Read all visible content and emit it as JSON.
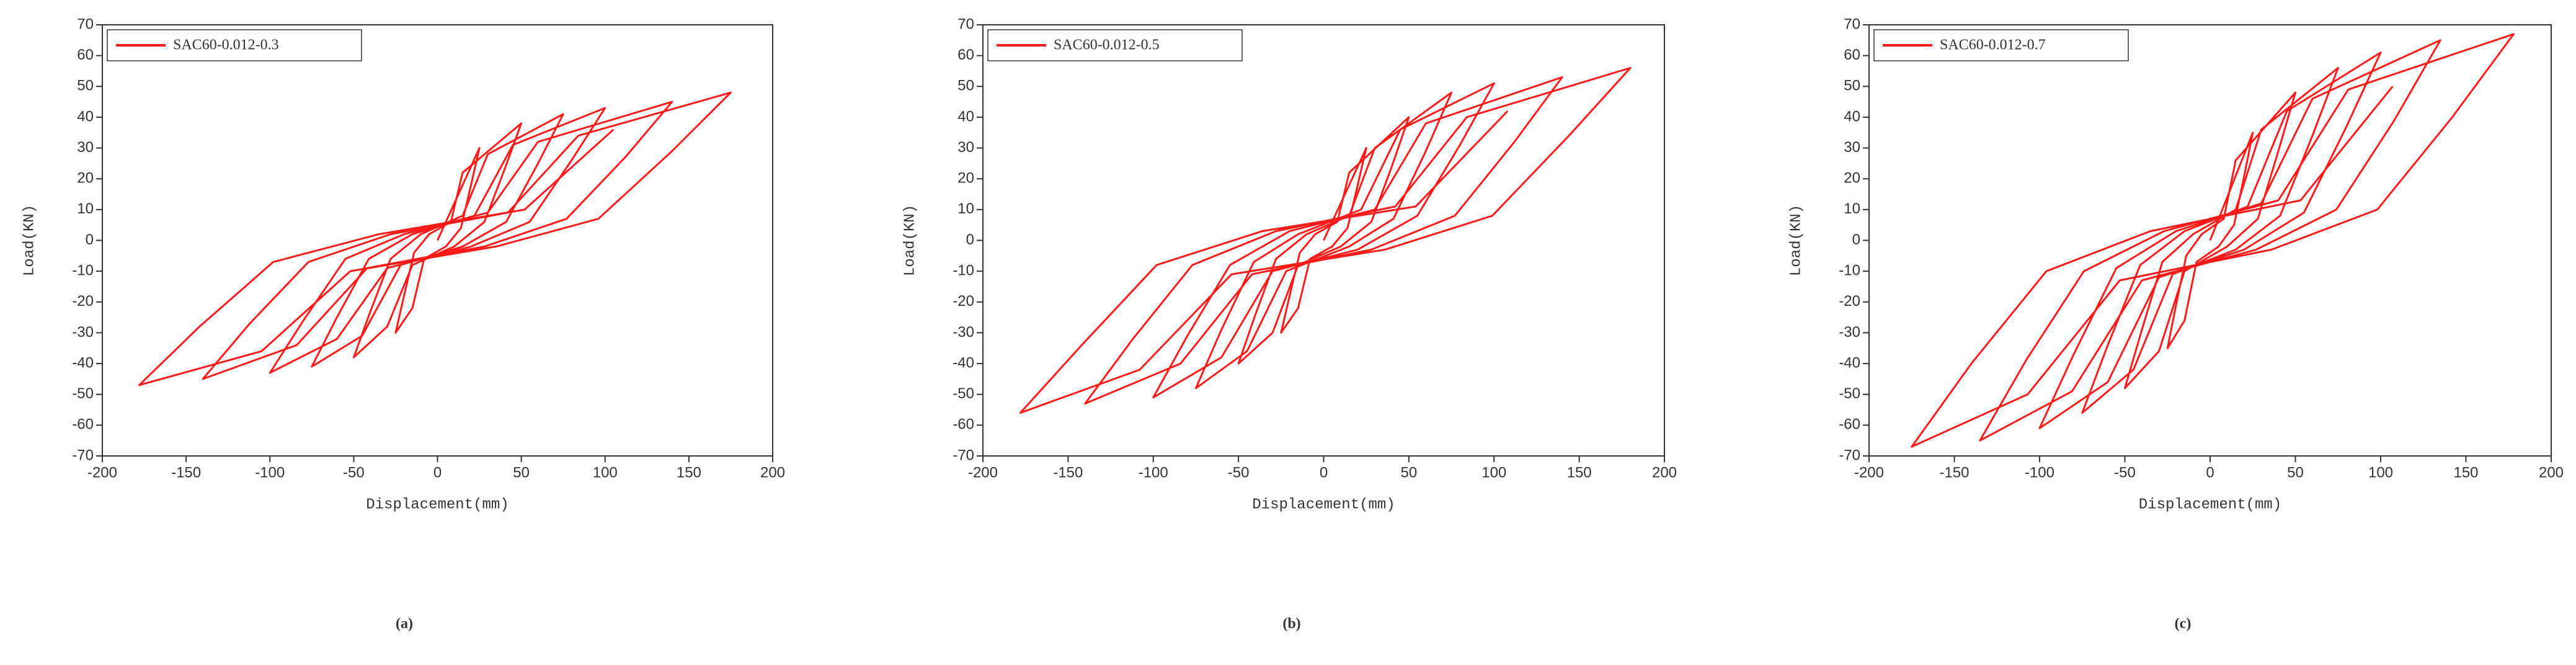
{
  "chart_data": [
    {
      "type": "line",
      "caption": "(a)",
      "xlabel": "Displacement(mm)",
      "ylabel": "Load(KN)",
      "legend": "upper left",
      "xlim": [
        -200,
        200
      ],
      "xticks": [
        -200,
        -150,
        -100,
        -50,
        0,
        50,
        100,
        150,
        200
      ],
      "ylim": [
        -70,
        70
      ],
      "yticks": [
        -70,
        -60,
        -50,
        -40,
        -30,
        -20,
        -10,
        0,
        10,
        20,
        30,
        40,
        50,
        60,
        70
      ],
      "series": [
        {
          "name": "SAC60-0.012-0.3",
          "color": "#ff1a1a",
          "x": [
            0,
            25,
            20,
            14,
            5,
            -8,
            -15,
            -25,
            -20,
            -14,
            -5,
            8,
            15,
            50,
            40,
            28,
            10,
            -15,
            -30,
            -50,
            -40,
            -28,
            -10,
            15,
            30,
            75,
            60,
            41,
            15,
            -22,
            -45,
            -75,
            -60,
            -41,
            -15,
            22,
            45,
            100,
            80,
            55,
            20,
            -30,
            -60,
            -100,
            -80,
            -55,
            -20,
            30,
            60,
            140,
            112,
            77,
            28,
            -42,
            -84,
            -140,
            -112,
            -77,
            -28,
            42,
            84,
            175,
            140,
            96,
            35,
            -52,
            -105,
            -178,
            -142,
            -98,
            -35,
            52,
            105
          ],
          "values": [
            0,
            30,
            18,
            4,
            -2,
            -6,
            -22,
            -30,
            -18,
            -4,
            2,
            6,
            22,
            38,
            23,
            6,
            -2,
            -8,
            -28,
            -38,
            -23,
            -6,
            2,
            8,
            28,
            41,
            25,
            6,
            -2,
            -8,
            -31,
            -41,
            -25,
            -6,
            2,
            8,
            31,
            43,
            26,
            6,
            -2,
            -9,
            -32,
            -43,
            -26,
            -6,
            2,
            9,
            32,
            45,
            27,
            7,
            -2,
            -9,
            -34,
            -45,
            -27,
            -7,
            2,
            9,
            34,
            48,
            29,
            7,
            -2,
            -10,
            -36,
            -47,
            -28,
            -7,
            2,
            10,
            36
          ]
        }
      ]
    },
    {
      "type": "line",
      "caption": "(b)",
      "xlabel": "Displacement(mm)",
      "ylabel": "Load(KN)",
      "legend": "upper left",
      "xlim": [
        -200,
        200
      ],
      "xticks": [
        -200,
        -150,
        -100,
        -50,
        0,
        50,
        100,
        150,
        200
      ],
      "ylim": [
        -70,
        70
      ],
      "yticks": [
        -70,
        -60,
        -50,
        -40,
        -30,
        -20,
        -10,
        0,
        10,
        20,
        30,
        40,
        50,
        60,
        70
      ],
      "series": [
        {
          "name": "SAC60-0.012-0.5",
          "color": "#ff1a1a",
          "x": [
            0,
            25,
            20,
            14,
            5,
            -8,
            -15,
            -25,
            -20,
            -14,
            -5,
            8,
            15,
            50,
            40,
            28,
            10,
            -15,
            -30,
            -50,
            -40,
            -28,
            -10,
            15,
            30,
            75,
            60,
            41,
            15,
            -22,
            -45,
            -75,
            -60,
            -41,
            -15,
            22,
            45,
            100,
            80,
            55,
            20,
            -30,
            -60,
            -100,
            -80,
            -55,
            -20,
            30,
            60,
            140,
            112,
            77,
            28,
            -42,
            -84,
            -140,
            -112,
            -77,
            -28,
            42,
            84,
            180,
            144,
            99,
            36,
            -54,
            -108,
            -178,
            -142,
            -98,
            -36,
            54,
            108
          ],
          "values": [
            0,
            30,
            18,
            4,
            -2,
            -6,
            -22,
            -30,
            -18,
            -4,
            2,
            6,
            22,
            40,
            24,
            6,
            -2,
            -8,
            -30,
            -40,
            -24,
            -6,
            2,
            8,
            30,
            48,
            29,
            7,
            -2,
            -10,
            -36,
            -48,
            -29,
            -7,
            2,
            10,
            36,
            51,
            31,
            8,
            -3,
            -10,
            -38,
            -51,
            -31,
            -8,
            3,
            10,
            38,
            53,
            32,
            8,
            -3,
            -11,
            -40,
            -53,
            -32,
            -8,
            3,
            11,
            40,
            56,
            34,
            8,
            -3,
            -11,
            -42,
            -56,
            -34,
            -8,
            3,
            11,
            42
          ]
        }
      ]
    },
    {
      "type": "line",
      "caption": "(c)",
      "xlabel": "Displacement(mm)",
      "ylabel": "Load(KN)",
      "legend": "upper left",
      "xlim": [
        -200,
        200
      ],
      "xticks": [
        -200,
        -150,
        -100,
        -50,
        0,
        50,
        100,
        150,
        200
      ],
      "ylim": [
        -70,
        70
      ],
      "yticks": [
        -70,
        -60,
        -50,
        -40,
        -30,
        -20,
        -10,
        0,
        10,
        20,
        30,
        40,
        50,
        60,
        70
      ],
      "series": [
        {
          "name": "SAC60-0.012-0.7",
          "color": "#ff1a1a",
          "x": [
            0,
            25,
            20,
            14,
            5,
            -8,
            -15,
            -25,
            -20,
            -14,
            -5,
            8,
            15,
            50,
            40,
            28,
            10,
            -15,
            -30,
            -50,
            -40,
            -28,
            -10,
            15,
            30,
            75,
            60,
            41,
            15,
            -22,
            -45,
            -75,
            -60,
            -41,
            -15,
            22,
            45,
            100,
            80,
            55,
            20,
            -30,
            -60,
            -100,
            -80,
            -55,
            -20,
            30,
            60,
            135,
            108,
            74,
            27,
            -40,
            -81,
            -135,
            -108,
            -74,
            -27,
            40,
            81,
            178,
            142,
            98,
            36,
            -53,
            -107,
            -175,
            -140,
            -96,
            -35,
            53,
            107
          ],
          "values": [
            0,
            35,
            21,
            5,
            -2,
            -7,
            -26,
            -35,
            -21,
            -5,
            2,
            7,
            26,
            48,
            29,
            7,
            -2,
            -10,
            -36,
            -48,
            -29,
            -7,
            2,
            10,
            36,
            56,
            34,
            8,
            -3,
            -11,
            -42,
            -56,
            -34,
            -8,
            3,
            11,
            42,
            61,
            37,
            9,
            -3,
            -12,
            -46,
            -61,
            -37,
            -9,
            3,
            12,
            46,
            65,
            39,
            10,
            -3,
            -13,
            -49,
            -65,
            -39,
            -10,
            3,
            13,
            49,
            67,
            40,
            10,
            -3,
            -13,
            -50,
            -67,
            -40,
            -10,
            3,
            13,
            50
          ]
        }
      ]
    }
  ]
}
